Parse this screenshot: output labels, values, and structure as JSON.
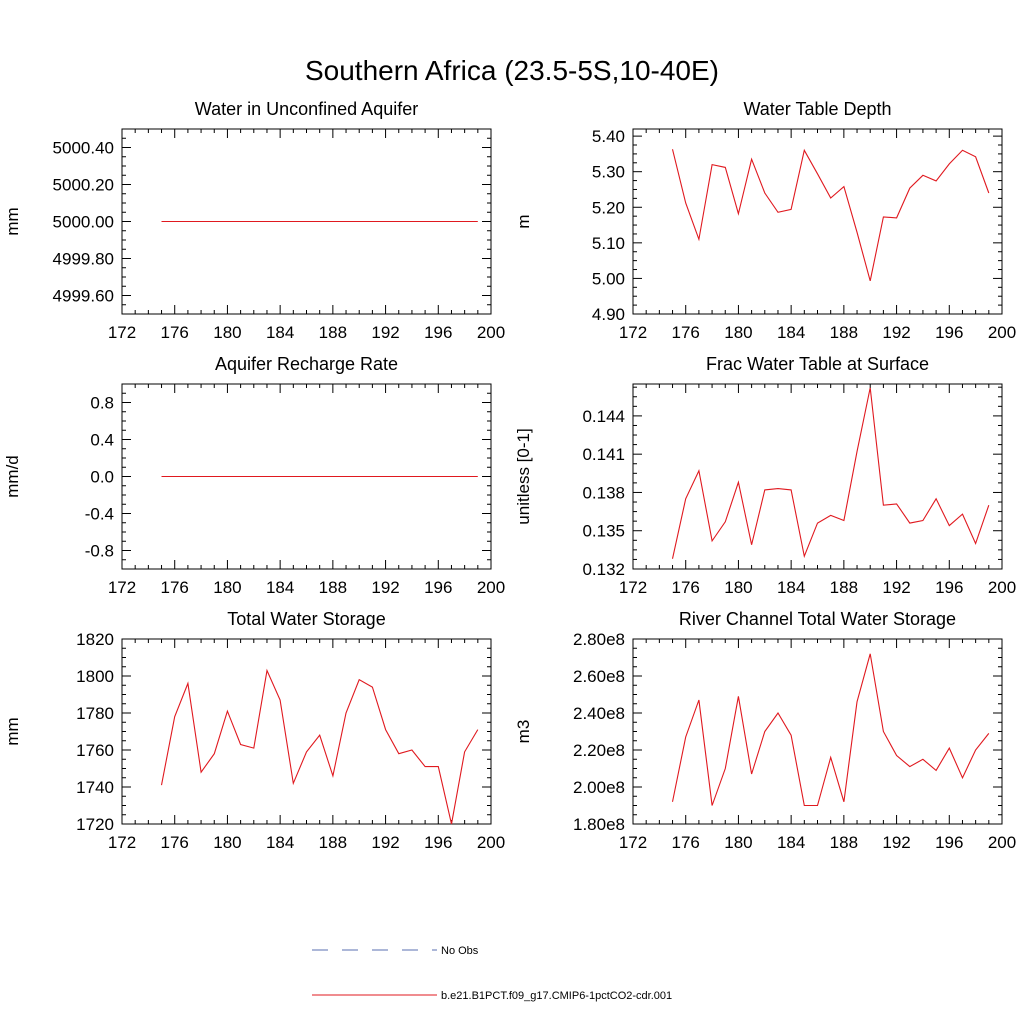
{
  "figure": {
    "title": "Southern Africa (23.5-5S,10-40E)"
  },
  "legend": {
    "items": [
      {
        "label": "No Obs",
        "color": "#5a6fb0",
        "dash": true
      },
      {
        "label": "b.e21.B1PCT.f09_g17.CMIP6-1pctCO2-cdr.001",
        "color": "#e0191f",
        "dash": false
      }
    ]
  },
  "colors": {
    "series": "#e0191f",
    "axis": "#000000"
  },
  "chart_data": [
    {
      "type": "line",
      "title": "Water in Unconfined Aquifer",
      "xlabel": "",
      "ylabel": "mm",
      "xlim": [
        172,
        200
      ],
      "ylim": [
        4999.5,
        5000.5
      ],
      "xticks": [
        172,
        176,
        180,
        184,
        188,
        192,
        196,
        200
      ],
      "xtick_labels": [
        "172",
        "176",
        "180",
        "184",
        "188",
        "192",
        "196",
        "200"
      ],
      "yticks": [
        4999.6,
        4999.8,
        5000.0,
        5000.2,
        5000.4
      ],
      "ytick_labels": [
        "4999.60",
        "4999.80",
        "5000.00",
        "5000.20",
        "5000.40"
      ],
      "x": [
        175,
        176,
        177,
        178,
        179,
        180,
        181,
        182,
        183,
        184,
        185,
        186,
        187,
        188,
        189,
        190,
        191,
        192,
        193,
        194,
        195,
        196,
        197,
        198,
        199
      ],
      "series": [
        {
          "values": [
            5000,
            5000,
            5000,
            5000,
            5000,
            5000,
            5000,
            5000,
            5000,
            5000,
            5000,
            5000,
            5000,
            5000,
            5000,
            5000,
            5000,
            5000,
            5000,
            5000,
            5000,
            5000,
            5000,
            5000,
            5000
          ]
        }
      ]
    },
    {
      "type": "line",
      "title": "Water Table Depth",
      "xlabel": "",
      "ylabel": "m",
      "xlim": [
        172,
        200
      ],
      "ylim": [
        4.9,
        5.42
      ],
      "xticks": [
        172,
        176,
        180,
        184,
        188,
        192,
        196,
        200
      ],
      "xtick_labels": [
        "172",
        "176",
        "180",
        "184",
        "188",
        "192",
        "196",
        "200"
      ],
      "yticks": [
        4.9,
        5.0,
        5.1,
        5.2,
        5.3,
        5.4
      ],
      "ytick_labels": [
        "4.90",
        "5.00",
        "5.10",
        "5.20",
        "5.30",
        "5.40"
      ],
      "x": [
        175,
        176,
        177,
        178,
        179,
        180,
        181,
        182,
        183,
        184,
        185,
        186,
        187,
        188,
        189,
        190,
        191,
        192,
        193,
        194,
        195,
        196,
        197,
        198,
        199
      ],
      "series": [
        {
          "values": [
            5.363,
            5.212,
            5.11,
            5.32,
            5.312,
            5.182,
            5.335,
            5.24,
            5.186,
            5.194,
            5.36,
            5.294,
            5.226,
            5.258,
            5.13,
            4.993,
            5.173,
            5.17,
            5.254,
            5.29,
            5.274,
            5.322,
            5.36,
            5.342,
            5.24
          ]
        }
      ]
    },
    {
      "type": "line",
      "title": "Aquifer Recharge Rate",
      "xlabel": "",
      "ylabel": "mm/d",
      "xlim": [
        172,
        200
      ],
      "ylim": [
        -1.0,
        1.0
      ],
      "xticks": [
        172,
        176,
        180,
        184,
        188,
        192,
        196,
        200
      ],
      "xtick_labels": [
        "172",
        "176",
        "180",
        "184",
        "188",
        "192",
        "196",
        "200"
      ],
      "yticks": [
        -0.8,
        -0.4,
        0.0,
        0.4,
        0.8
      ],
      "ytick_labels": [
        "-0.8",
        "-0.4",
        "0.0",
        "0.4",
        "0.8"
      ],
      "x": [
        175,
        176,
        177,
        178,
        179,
        180,
        181,
        182,
        183,
        184,
        185,
        186,
        187,
        188,
        189,
        190,
        191,
        192,
        193,
        194,
        195,
        196,
        197,
        198,
        199
      ],
      "series": [
        {
          "values": [
            0,
            0,
            0,
            0,
            0,
            0,
            0,
            0,
            0,
            0,
            0,
            0,
            0,
            0,
            0,
            0,
            0,
            0,
            0,
            0,
            0,
            0,
            0,
            0,
            0
          ]
        }
      ]
    },
    {
      "type": "line",
      "title": "Frac Water Table at Surface",
      "xlabel": "",
      "ylabel": "unitless [0-1]",
      "xlim": [
        172,
        200
      ],
      "ylim": [
        0.132,
        0.1465
      ],
      "xticks": [
        172,
        176,
        180,
        184,
        188,
        192,
        196,
        200
      ],
      "xtick_labels": [
        "172",
        "176",
        "180",
        "184",
        "188",
        "192",
        "196",
        "200"
      ],
      "yticks": [
        0.132,
        0.135,
        0.138,
        0.141,
        0.144
      ],
      "ytick_labels": [
        "0.132",
        "0.135",
        "0.138",
        "0.141",
        "0.144"
      ],
      "x": [
        175,
        176,
        177,
        178,
        179,
        180,
        181,
        182,
        183,
        184,
        185,
        186,
        187,
        188,
        189,
        190,
        191,
        192,
        193,
        194,
        195,
        196,
        197,
        198,
        199
      ],
      "series": [
        {
          "values": [
            0.1328,
            0.1375,
            0.1397,
            0.1342,
            0.1357,
            0.1388,
            0.1339,
            0.1382,
            0.1383,
            0.1382,
            0.133,
            0.1356,
            0.1362,
            0.1358,
            0.1412,
            0.1462,
            0.137,
            0.1371,
            0.1356,
            0.1358,
            0.1375,
            0.1354,
            0.1363,
            0.134,
            0.137
          ]
        }
      ]
    },
    {
      "type": "line",
      "title": "Total Water Storage",
      "xlabel": "",
      "ylabel": "mm",
      "xlim": [
        172,
        200
      ],
      "ylim": [
        1720,
        1820
      ],
      "xticks": [
        172,
        176,
        180,
        184,
        188,
        192,
        196,
        200
      ],
      "xtick_labels": [
        "172",
        "176",
        "180",
        "184",
        "188",
        "192",
        "196",
        "200"
      ],
      "yticks": [
        1720,
        1740,
        1760,
        1780,
        1800,
        1820
      ],
      "ytick_labels": [
        "1720",
        "1740",
        "1760",
        "1780",
        "1800",
        "1820"
      ],
      "x": [
        175,
        176,
        177,
        178,
        179,
        180,
        181,
        182,
        183,
        184,
        185,
        186,
        187,
        188,
        189,
        190,
        191,
        192,
        193,
        194,
        195,
        196,
        197,
        198,
        199
      ],
      "series": [
        {
          "values": [
            1741,
            1778,
            1796,
            1748,
            1758,
            1781,
            1763,
            1761,
            1803,
            1787,
            1742,
            1759,
            1768,
            1746,
            1780,
            1798,
            1794,
            1771,
            1758,
            1760,
            1751,
            1751,
            1720,
            1759,
            1771
          ]
        }
      ]
    },
    {
      "type": "line",
      "title": "River Channel Total Water Storage",
      "xlabel": "",
      "ylabel": "m3",
      "xlim": [
        172,
        200
      ],
      "ylim": [
        180000000.0,
        280000000.0
      ],
      "xticks": [
        172,
        176,
        180,
        184,
        188,
        192,
        196,
        200
      ],
      "xtick_labels": [
        "172",
        "176",
        "180",
        "184",
        "188",
        "192",
        "196",
        "200"
      ],
      "yticks": [
        180000000.0,
        200000000.0,
        220000000.0,
        240000000.0,
        260000000.0,
        280000000.0
      ],
      "ytick_labels": [
        "1.80e8",
        "2.00e8",
        "2.20e8",
        "2.40e8",
        "2.60e8",
        "2.80e8"
      ],
      "x": [
        175,
        176,
        177,
        178,
        179,
        180,
        181,
        182,
        183,
        184,
        185,
        186,
        187,
        188,
        189,
        190,
        191,
        192,
        193,
        194,
        195,
        196,
        197,
        198,
        199
      ],
      "series": [
        {
          "values": [
            192000000.0,
            227000000.0,
            247000000.0,
            190000000.0,
            210000000.0,
            249000000.0,
            207000000.0,
            230000000.0,
            240000000.0,
            228000000.0,
            190000000.0,
            190000000.0,
            216000000.0,
            192000000.0,
            246000000.0,
            272000000.0,
            230000000.0,
            217000000.0,
            211000000.0,
            215000000.0,
            209000000.0,
            221000000.0,
            205000000.0,
            220000000.0,
            229000000.0
          ]
        }
      ]
    }
  ]
}
